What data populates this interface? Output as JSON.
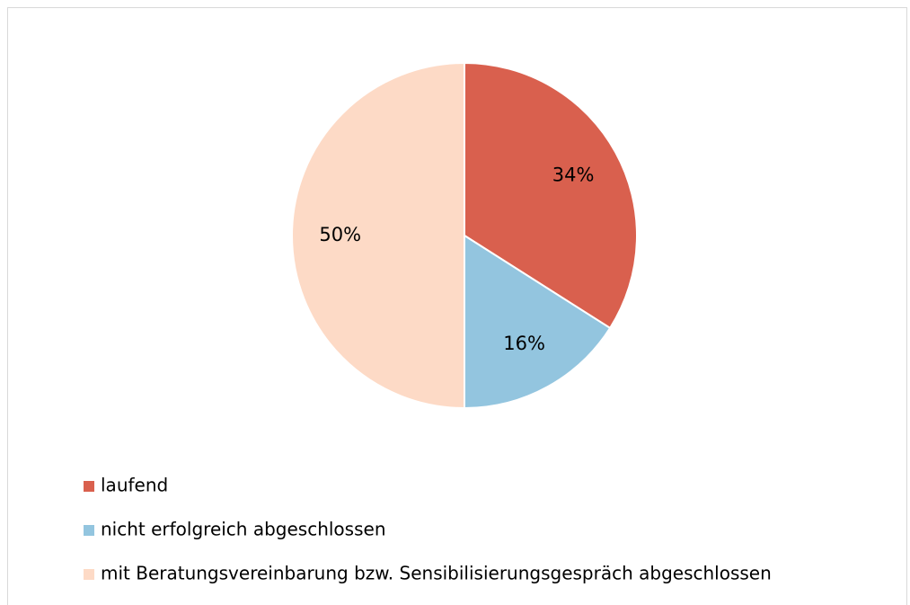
{
  "chart_data": {
    "type": "pie",
    "categories": [
      "laufend",
      "nicht erfolgreich abgeschlossen",
      "mit Beratungsvereinbarung bzw. Sensibilisierungsgespräch abgeschlossen"
    ],
    "values": [
      34,
      16,
      50
    ],
    "value_labels": [
      "34%",
      "16%",
      "50%"
    ],
    "colors": [
      "#d9604e",
      "#93c5df",
      "#fddac6"
    ],
    "legend": "bottom-left"
  }
}
